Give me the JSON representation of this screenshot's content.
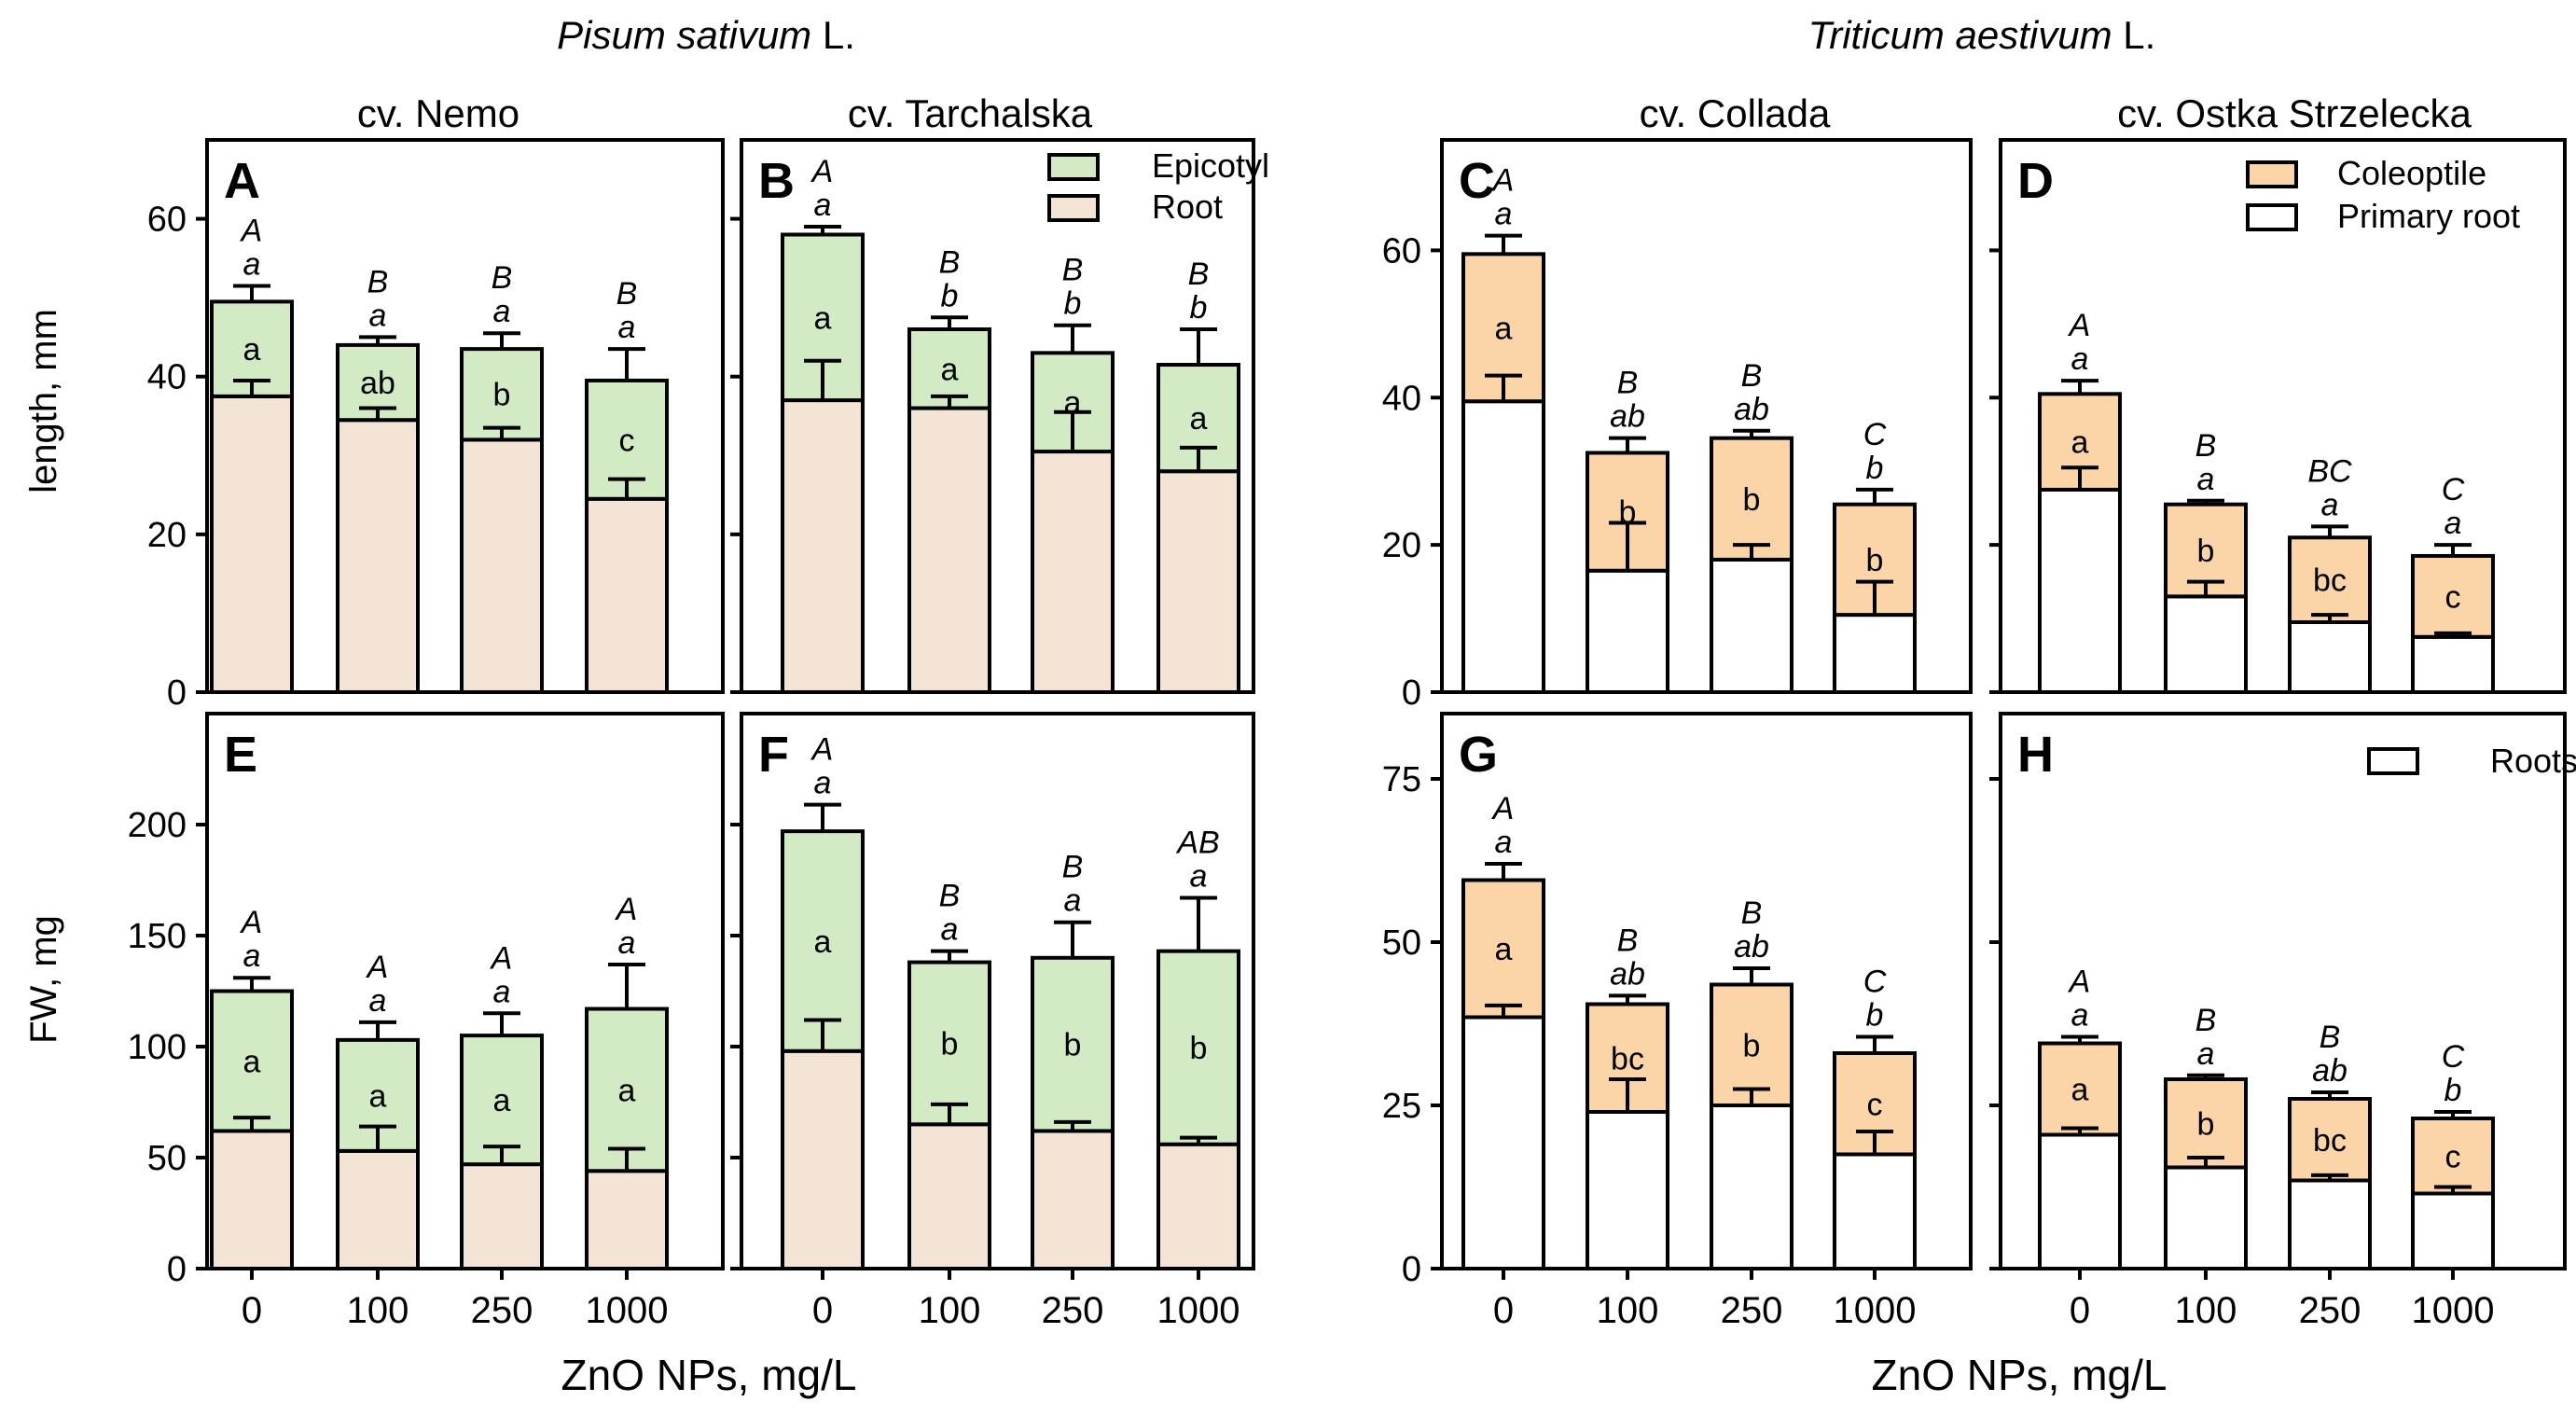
{
  "colors": {
    "green": "#d3ebc4",
    "beige": "#f4e4d6",
    "orange": "#fbd5a8",
    "white": "#ffffff"
  },
  "species": [
    {
      "name": "Pisum sativum",
      "suffix": " L."
    },
    {
      "name": "Triticum aestivum",
      "suffix": " L."
    }
  ],
  "cultivars": [
    "cv. Nemo",
    "cv. Tarchalska",
    "cv. Collada",
    "cv. Ostka Strzelecka"
  ],
  "axes": {
    "ylabel_top": "length, mm",
    "ylabel_bottom": "FW, mg",
    "xlabel": "ZnO NPs, mg/L",
    "xticks": [
      "0",
      "100",
      "250",
      "1000"
    ],
    "ticks_top_pea": [
      "0",
      "20",
      "40",
      "60"
    ],
    "ticks_top_wheat": [
      "0",
      "20",
      "40",
      "60"
    ],
    "ticks_bottom_pea": [
      "0",
      "50",
      "100",
      "150",
      "200"
    ],
    "ticks_bottom_wheat": [
      "0",
      "25",
      "50",
      "75"
    ]
  },
  "legends": {
    "pea": [
      "Epicotyl",
      "Root"
    ],
    "wheat": [
      "Coleoptile",
      "Primary root"
    ],
    "wheat_fw": [
      "Roots"
    ]
  },
  "chart_data": [
    {
      "panel": "A",
      "type": "bar",
      "stacked": true,
      "categories": [
        "0",
        "100",
        "250",
        "1000"
      ],
      "ylim": [
        0,
        70
      ],
      "ylabel": "length, mm",
      "title": "cv. Nemo",
      "series": [
        {
          "name": "Root",
          "values": [
            37.5,
            34.5,
            32,
            24.5
          ],
          "err": [
            2,
            1.5,
            1.5,
            2.5
          ],
          "letters": [
            "",
            "",
            "",
            ""
          ]
        },
        {
          "name": "Epicotyl",
          "values": [
            12,
            9.5,
            11.5,
            15
          ],
          "err": [
            2,
            1,
            2,
            4
          ],
          "letters": [
            "a",
            "ab",
            "b",
            "c"
          ]
        }
      ],
      "top_letters": [
        [
          "A",
          "a"
        ],
        [
          "B",
          "a"
        ],
        [
          "B",
          "a"
        ],
        [
          "B",
          "a"
        ]
      ]
    },
    {
      "panel": "B",
      "type": "bar",
      "stacked": true,
      "categories": [
        "0",
        "100",
        "250",
        "1000"
      ],
      "ylim": [
        0,
        70
      ],
      "title": "cv. Tarchalska",
      "series": [
        {
          "name": "Root",
          "values": [
            37,
            36,
            30.5,
            28
          ],
          "err": [
            5,
            1.5,
            5,
            3
          ],
          "letters": [
            "",
            "",
            "",
            ""
          ]
        },
        {
          "name": "Epicotyl",
          "values": [
            21,
            10,
            12.5,
            13.5
          ],
          "err": [
            1,
            1.5,
            3.5,
            4.5
          ],
          "letters": [
            "a",
            "a",
            "a",
            "a"
          ]
        }
      ],
      "top_letters": [
        [
          "A",
          "a"
        ],
        [
          "B",
          "b"
        ],
        [
          "B",
          "b"
        ],
        [
          "B",
          "b"
        ]
      ]
    },
    {
      "panel": "C",
      "type": "bar",
      "stacked": true,
      "categories": [
        "0",
        "100",
        "250",
        "1000"
      ],
      "ylim": [
        0,
        75
      ],
      "title": "cv. Collada",
      "series": [
        {
          "name": "Primary root",
          "values": [
            39.5,
            16.5,
            18,
            10.5
          ],
          "err": [
            3.5,
            6.5,
            2,
            4.5
          ],
          "letters": [
            "",
            "",
            "",
            ""
          ]
        },
        {
          "name": "Coleoptile",
          "values": [
            20,
            16,
            16.5,
            15
          ],
          "err": [
            2.5,
            2,
            1,
            2
          ],
          "letters": [
            "a",
            "b",
            "b",
            "b"
          ]
        }
      ],
      "top_letters": [
        [
          "A",
          "a"
        ],
        [
          "B",
          "ab"
        ],
        [
          "B",
          "ab"
        ],
        [
          "C",
          "b"
        ]
      ]
    },
    {
      "panel": "D",
      "type": "bar",
      "stacked": true,
      "categories": [
        "0",
        "100",
        "250",
        "1000"
      ],
      "ylim": [
        0,
        75
      ],
      "title": "cv. Ostka Strzelecka",
      "series": [
        {
          "name": "Primary root",
          "values": [
            27.5,
            13,
            9.5,
            7.5
          ],
          "err": [
            3,
            2,
            1,
            0.5
          ],
          "letters": [
            "",
            "",
            "",
            ""
          ]
        },
        {
          "name": "Coleoptile",
          "values": [
            13,
            12.5,
            11.5,
            11
          ],
          "err": [
            1.8,
            0.5,
            1.5,
            1.5
          ],
          "letters": [
            "a",
            "b",
            "bc",
            "c"
          ]
        }
      ],
      "top_letters": [
        [
          "A",
          "a"
        ],
        [
          "B",
          "a"
        ],
        [
          "BC",
          "a"
        ],
        [
          "C",
          "a"
        ]
      ]
    },
    {
      "panel": "E",
      "type": "bar",
      "stacked": true,
      "categories": [
        "0",
        "100",
        "250",
        "1000"
      ],
      "ylim": [
        0,
        250
      ],
      "ylabel": "FW, mg",
      "series": [
        {
          "name": "Root",
          "values": [
            62,
            53,
            47,
            44
          ],
          "err": [
            6,
            11,
            8,
            10
          ],
          "letters": [
            "",
            "",
            "",
            ""
          ]
        },
        {
          "name": "Epicotyl",
          "values": [
            63,
            50,
            58,
            73
          ],
          "err": [
            6,
            8,
            10,
            20
          ],
          "letters": [
            "a",
            "a",
            "a",
            "a"
          ]
        }
      ],
      "top_letters": [
        [
          "A",
          "a"
        ],
        [
          "A",
          "a"
        ],
        [
          "A",
          "a"
        ],
        [
          "A",
          "a"
        ]
      ]
    },
    {
      "panel": "F",
      "type": "bar",
      "stacked": true,
      "categories": [
        "0",
        "100",
        "250",
        "1000"
      ],
      "ylim": [
        0,
        250
      ],
      "series": [
        {
          "name": "Root",
          "values": [
            98,
            65,
            62,
            56
          ],
          "err": [
            14,
            9,
            4,
            3
          ],
          "letters": [
            "",
            "",
            "",
            ""
          ]
        },
        {
          "name": "Epicotyl",
          "values": [
            99,
            73,
            78,
            87
          ],
          "err": [
            12,
            5,
            16,
            24
          ],
          "letters": [
            "a",
            "b",
            "b",
            "b"
          ]
        }
      ],
      "top_letters": [
        [
          "A",
          "a"
        ],
        [
          "B",
          "a"
        ],
        [
          "B",
          "a"
        ],
        [
          "AB",
          "a"
        ]
      ]
    },
    {
      "panel": "G",
      "type": "bar",
      "stacked": true,
      "categories": [
        "0",
        "100",
        "250",
        "1000"
      ],
      "ylim": [
        0,
        85
      ],
      "series": [
        {
          "name": "Roots",
          "values": [
            38.5,
            24,
            25,
            17.5
          ],
          "err": [
            1.8,
            5,
            2.5,
            3.5
          ],
          "letters": [
            "",
            "",
            "",
            ""
          ]
        },
        {
          "name": "Coleoptile",
          "values": [
            21,
            16.5,
            18.5,
            15.5
          ],
          "err": [
            2.5,
            1.3,
            2.5,
            2.5
          ],
          "letters": [
            "a",
            "bc",
            "b",
            "c"
          ]
        }
      ],
      "top_letters": [
        [
          "A",
          "a"
        ],
        [
          "B",
          "ab"
        ],
        [
          "B",
          "ab"
        ],
        [
          "C",
          "b"
        ]
      ]
    },
    {
      "panel": "H",
      "type": "bar",
      "stacked": true,
      "categories": [
        "0",
        "100",
        "250",
        "1000"
      ],
      "ylim": [
        0,
        85
      ],
      "series": [
        {
          "name": "Roots",
          "values": [
            20.5,
            15.5,
            13.5,
            11.5
          ],
          "err": [
            1,
            1.5,
            0.8,
            1
          ],
          "letters": [
            "",
            "",
            "",
            ""
          ]
        },
        {
          "name": "Coleoptile",
          "values": [
            14,
            13.5,
            12.5,
            11.5
          ],
          "err": [
            1,
            0.6,
            1,
            1
          ],
          "letters": [
            "a",
            "b",
            "bc",
            "c"
          ]
        }
      ],
      "top_letters": [
        [
          "A",
          "a"
        ],
        [
          "B",
          "a"
        ],
        [
          "B",
          "ab"
        ],
        [
          "C",
          "b"
        ]
      ]
    }
  ]
}
